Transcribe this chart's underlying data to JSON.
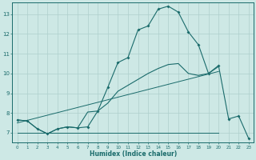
{
  "xlabel": "Humidex (Indice chaleur)",
  "bg_color": "#cde8e5",
  "line_color": "#1a6b6b",
  "grid_color": "#aecfcc",
  "xlim": [
    -0.5,
    23.5
  ],
  "ylim": [
    6.5,
    13.6
  ],
  "xticks": [
    0,
    1,
    2,
    3,
    4,
    5,
    6,
    7,
    8,
    9,
    10,
    11,
    12,
    13,
    14,
    15,
    16,
    17,
    18,
    19,
    20,
    21,
    22,
    23
  ],
  "yticks": [
    7,
    8,
    9,
    10,
    11,
    12,
    13
  ],
  "line1_x": [
    0,
    1,
    2,
    3,
    4,
    5,
    6,
    7,
    8,
    9,
    10,
    11,
    12,
    13,
    14,
    15,
    16,
    17,
    18,
    19,
    20,
    21,
    22,
    23
  ],
  "line1_y": [
    7.65,
    7.6,
    7.2,
    6.95,
    7.2,
    7.3,
    7.25,
    7.3,
    8.1,
    9.3,
    10.55,
    10.8,
    12.2,
    12.4,
    13.25,
    13.4,
    13.1,
    12.1,
    11.45,
    10.0,
    10.4,
    7.7,
    7.85,
    6.7
  ],
  "line2_x": [
    0,
    1,
    2,
    3,
    4,
    5,
    6,
    7,
    8,
    9,
    10,
    11,
    12,
    13,
    14,
    15,
    16,
    17,
    18,
    19,
    20
  ],
  "line2_y": [
    7.65,
    7.6,
    7.2,
    6.95,
    7.2,
    7.3,
    7.25,
    8.05,
    8.1,
    8.5,
    9.1,
    9.4,
    9.7,
    10.0,
    10.25,
    10.45,
    10.5,
    10.0,
    9.9,
    10.0,
    10.35
  ],
  "line3_x": [
    0,
    20
  ],
  "line3_y": [
    7.0,
    7.0
  ],
  "line4_x": [
    0,
    20
  ],
  "line4_y": [
    7.5,
    10.1
  ]
}
